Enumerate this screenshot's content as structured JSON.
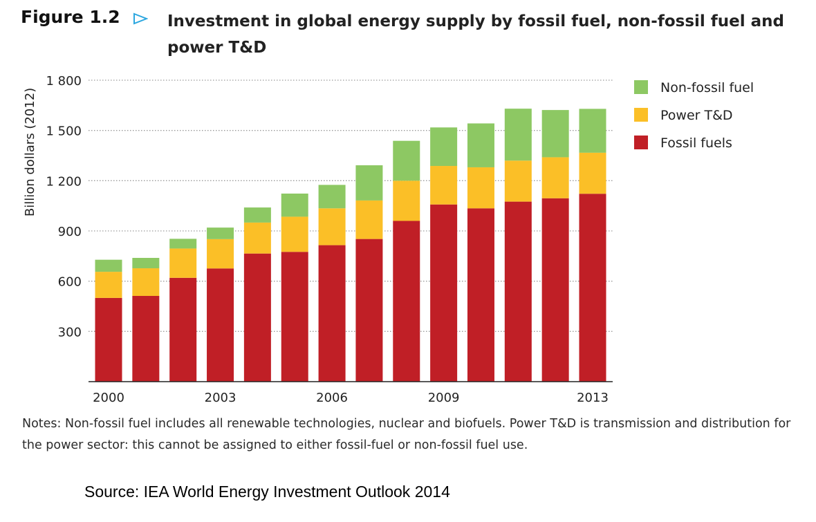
{
  "figure": {
    "label": "Figure 1.2",
    "title": "Investment in global energy supply by fossil fuel, non-fossil fuel and power T&D"
  },
  "notes": "Notes: Non-fossil fuel includes all renewable technologies, nuclear and biofuels. Power T&D is transmission and distribution for the power sector: this cannot be assigned to either fossil-fuel or non-fossil fuel use.",
  "source": "Source: IEA World Energy Investment Outlook 2014",
  "colors": {
    "fossil": "#c01f26",
    "power_td": "#fbbf27",
    "non_fossil": "#8dc863",
    "arrow": "#2aa6df"
  },
  "chart_data": {
    "type": "bar",
    "stacked": true,
    "title": "Investment in global energy supply by fossil fuel, non-fossil fuel and power T&D",
    "xlabel": "",
    "ylabel": "Billion dollars (2012)",
    "ylim": [
      0,
      1800
    ],
    "yticks": [
      300,
      600,
      900,
      1200,
      1500,
      1800
    ],
    "ytick_labels": [
      "300",
      "600",
      "900",
      "1 200",
      "1 500",
      "1 800"
    ],
    "categories": [
      "2000",
      "2001",
      "2002",
      "2003",
      "2004",
      "2005",
      "2006",
      "2007",
      "2008",
      "2009",
      "2010",
      "2011",
      "2012",
      "2013"
    ],
    "xtick_labels": [
      "2000",
      "",
      "",
      "2003",
      "",
      "",
      "2006",
      "",
      "",
      "2009",
      "",
      "",
      "",
      "2013"
    ],
    "grid": true,
    "legend_position": "top-right",
    "series": [
      {
        "name": "Fossil fuels",
        "color_key": "fossil",
        "values": [
          500,
          512,
          620,
          676,
          765,
          775,
          815,
          852,
          960,
          1058,
          1035,
          1075,
          1095,
          1122
        ]
      },
      {
        "name": "Power T&D",
        "color_key": "power_td",
        "values": [
          156,
          165,
          175,
          175,
          185,
          210,
          220,
          230,
          240,
          230,
          245,
          245,
          245,
          245
        ]
      },
      {
        "name": "Non-fossil fuel",
        "color_key": "non_fossil",
        "values": [
          72,
          62,
          58,
          69,
          90,
          138,
          140,
          210,
          238,
          230,
          262,
          310,
          282,
          262
        ]
      }
    ],
    "legend_order": [
      "Non-fossil fuel",
      "Power T&D",
      "Fossil fuels"
    ]
  }
}
